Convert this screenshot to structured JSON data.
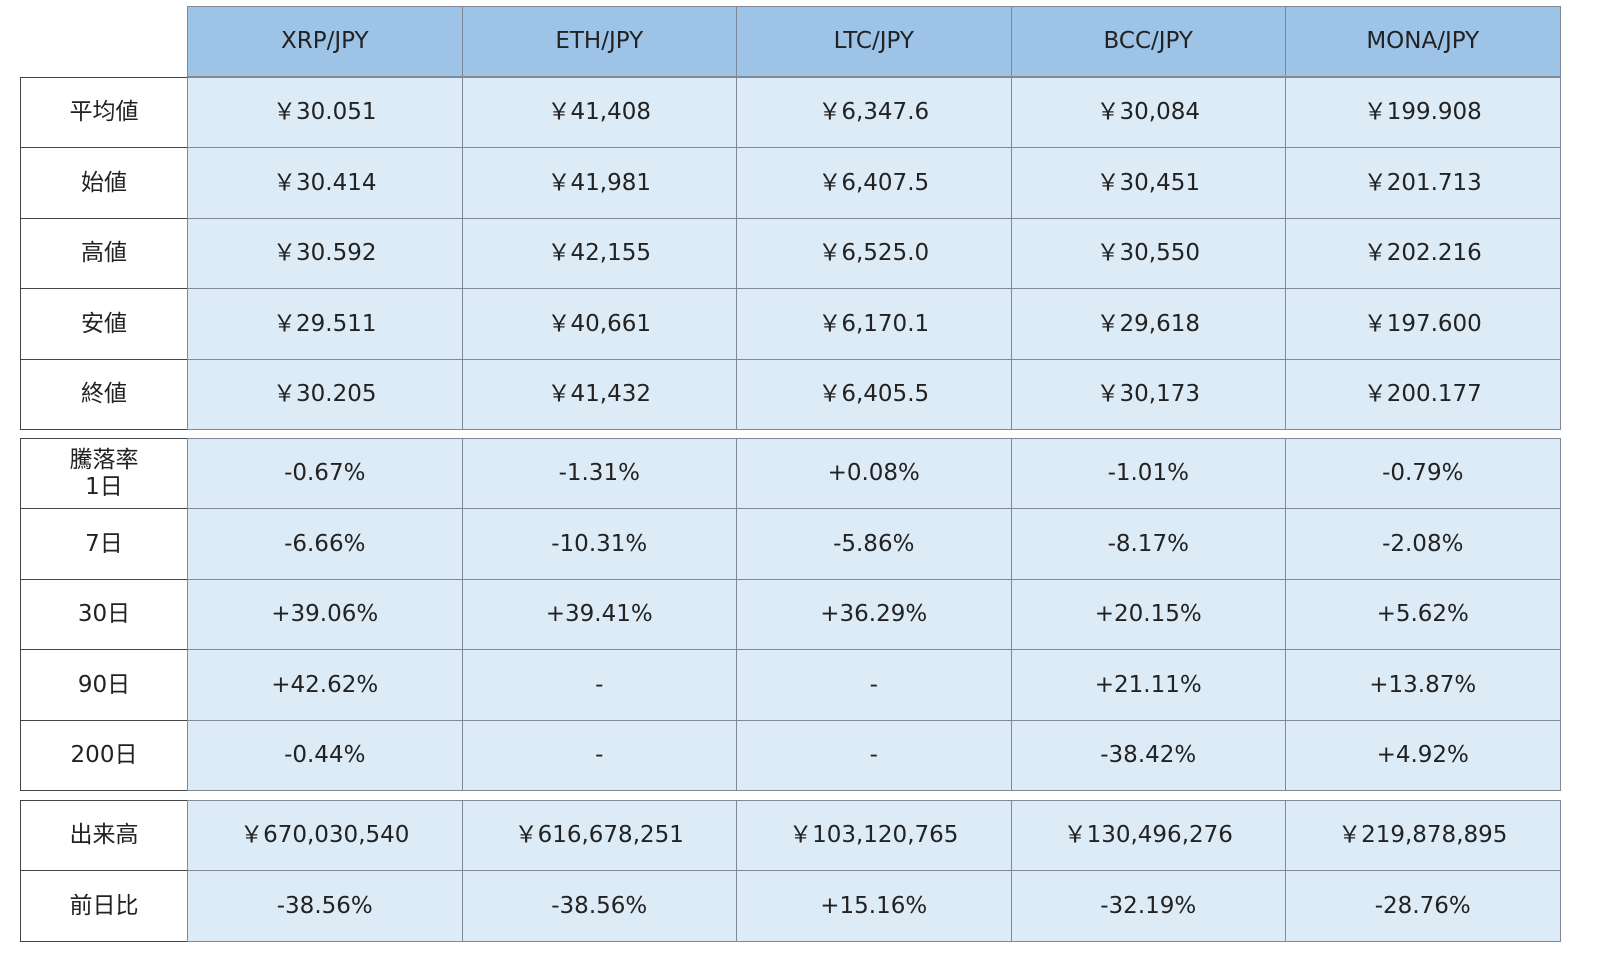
{
  "table": {
    "columns": [
      "XRP/JPY",
      "ETH/JPY",
      "LTC/JPY",
      "BCC/JPY",
      "MONA/JPY"
    ],
    "groups": [
      {
        "rows": [
          {
            "label": "平均値",
            "cells": [
              "￥30.051",
              "￥41,408",
              "￥6,347.6",
              "￥30,084",
              "￥199.908"
            ]
          },
          {
            "label": "始値",
            "cells": [
              "￥30.414",
              "￥41,981",
              "￥6,407.5",
              "￥30,451",
              "￥201.713"
            ]
          },
          {
            "label": "高値",
            "cells": [
              "￥30.592",
              "￥42,155",
              "￥6,525.0",
              "￥30,550",
              "￥202.216"
            ]
          },
          {
            "label": "安値",
            "cells": [
              "￥29.511",
              "￥40,661",
              "￥6,170.1",
              "￥29,618",
              "￥197.600"
            ]
          },
          {
            "label": "終値",
            "cells": [
              "￥30.205",
              "￥41,432",
              "￥6,405.5",
              "￥30,173",
              "￥200.177"
            ]
          }
        ]
      },
      {
        "rows": [
          {
            "label": "騰落率\n1日",
            "cells": [
              "-0.67%",
              "-1.31%",
              "+0.08%",
              "-1.01%",
              "-0.79%"
            ]
          },
          {
            "label": "7日",
            "cells": [
              "-6.66%",
              "-10.31%",
              "-5.86%",
              "-8.17%",
              "-2.08%"
            ]
          },
          {
            "label": "30日",
            "cells": [
              "+39.06%",
              "+39.41%",
              "+36.29%",
              "+20.15%",
              "+5.62%"
            ]
          },
          {
            "label": "90日",
            "cells": [
              "+42.62%",
              "-",
              "-",
              "+21.11%",
              "+13.87%"
            ]
          },
          {
            "label": "200日",
            "cells": [
              "-0.44%",
              "-",
              "-",
              "-38.42%",
              "+4.92%"
            ]
          }
        ]
      },
      {
        "rows": [
          {
            "label": "出来高",
            "cells": [
              "￥670,030,540",
              "￥616,678,251",
              "￥103,120,765",
              "￥130,496,276",
              "￥219,878,895"
            ]
          },
          {
            "label": "前日比",
            "cells": [
              "-38.56%",
              "-38.56%",
              "+15.16%",
              "-32.19%",
              "-28.76%"
            ]
          }
        ]
      }
    ]
  }
}
